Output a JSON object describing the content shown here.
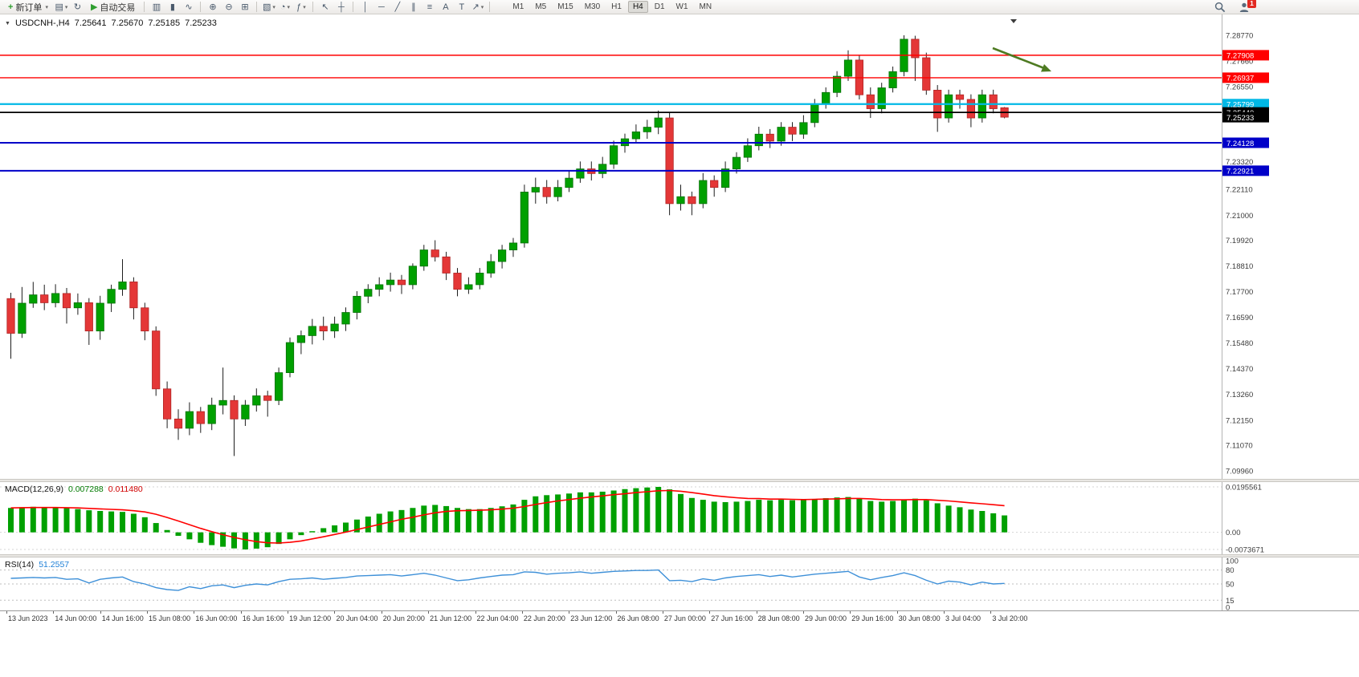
{
  "colors": {
    "bull": "#00a000",
    "bull_border": "#067006",
    "bear": "#e43737",
    "bear_border": "#b02424",
    "macd_hist": "#00a000",
    "macd_signal": "#ff0000",
    "rsi_line": "#3e90d8",
    "level_red": "#ff0000",
    "level_cyan": "#00b8e6",
    "level_blue": "#0000c8",
    "level_black": "#000000",
    "arrow_green": "#4e7b22"
  },
  "toolbar": {
    "items": [
      {
        "t": "btn",
        "name": "new-order-button",
        "icon": "new-order-icon",
        "glyph": "+",
        "gc": "#2e9e2e",
        "label": "新订单",
        "dd": true
      },
      {
        "t": "ico",
        "name": "charts-profile-icon",
        "glyph": "▤",
        "dd": true
      },
      {
        "t": "ico",
        "name": "refresh-icon",
        "glyph": "↻"
      },
      {
        "t": "btn",
        "name": "algo-trading-button",
        "icon": "play-icon",
        "glyph": "▶",
        "gc": "#2e9e2e",
        "label": "自动交易"
      },
      {
        "t": "sep"
      },
      {
        "t": "ico",
        "name": "bar-chart-mode-icon",
        "glyph": "▥"
      },
      {
        "t": "ico",
        "name": "candlestick-chart-mode-icon",
        "glyph": "▮"
      },
      {
        "t": "ico",
        "name": "line-chart-mode-icon",
        "glyph": "∿"
      },
      {
        "t": "sep"
      },
      {
        "t": "ico",
        "name": "zoom-in-icon",
        "glyph": "⊕"
      },
      {
        "t": "ico",
        "name": "zoom-out-icon",
        "glyph": "⊖"
      },
      {
        "t": "ico",
        "name": "tile-windows-icon",
        "glyph": "⊞"
      },
      {
        "t": "sep"
      },
      {
        "t": "ico",
        "name": "new-chart-icon",
        "glyph": "▧",
        "dd": true
      },
      {
        "t": "ico",
        "name": "period-clock-icon",
        "glyph": "◔",
        "dd": true
      },
      {
        "t": "ico",
        "name": "indicators-icon",
        "glyph": "ƒ",
        "dd": true
      },
      {
        "t": "sep"
      },
      {
        "t": "ico",
        "name": "cursor-icon",
        "glyph": "↖"
      },
      {
        "t": "ico",
        "name": "crosshair-icon",
        "glyph": "┼"
      },
      {
        "t": "sep"
      },
      {
        "t": "ico",
        "name": "vertical-line-icon",
        "glyph": "│"
      },
      {
        "t": "ico",
        "name": "horizontal-line-icon",
        "glyph": "─"
      },
      {
        "t": "ico",
        "name": "trendline-icon",
        "glyph": "╱"
      },
      {
        "t": "ico",
        "name": "channel-icon",
        "glyph": "∥"
      },
      {
        "t": "ico",
        "name": "fibonacci-icon",
        "glyph": "≡"
      },
      {
        "t": "ico",
        "name": "text-tool-icon",
        "glyph": "A"
      },
      {
        "t": "ico",
        "name": "label-tool-icon",
        "glyph": "T"
      },
      {
        "t": "ico",
        "name": "arrow-tool-icon",
        "glyph": "↗",
        "dd": true
      },
      {
        "t": "sep"
      }
    ],
    "timeframes": [
      "M1",
      "M5",
      "M15",
      "M30",
      "H1",
      "H4",
      "D1",
      "W1",
      "MN"
    ],
    "active_timeframe": "H4",
    "notification_count": "1"
  },
  "chart": {
    "header": {
      "collapse_glyph": "▼",
      "symbol_period": "USDCNH-,H4",
      "open": "7.25641",
      "high": "7.25670",
      "low": "7.25185",
      "close": "7.25233"
    },
    "price_axis_labels": [
      "7.28770",
      "7.27660",
      "7.26550",
      "7.23320",
      "7.22110",
      "7.21000",
      "7.19920",
      "7.18810",
      "7.17700",
      "7.16590",
      "7.15480",
      "7.14370",
      "7.13260",
      "7.12150",
      "7.11070",
      "7.09960"
    ],
    "levels": [
      {
        "price": 7.27908,
        "label": "7.27908",
        "color": "#ff0000",
        "width": 1.4
      },
      {
        "price": 7.26937,
        "label": "7.26937",
        "color": "#ff0000",
        "width": 1.4
      },
      {
        "price": 7.25799,
        "label": "7.25799",
        "color": "#00b8e6",
        "width": 2.2
      },
      {
        "price": 7.2544,
        "label": "7.25440",
        "color": "#000000",
        "width": 1.8
      },
      {
        "price": 7.24128,
        "label": "7.24128",
        "color": "#0000c8",
        "width": 2
      },
      {
        "price": 7.22921,
        "label": "7.22921",
        "color": "#0000c8",
        "width": 2
      }
    ],
    "current_price": {
      "label": "7.25233",
      "color": "#000000"
    },
    "time_labels": [
      "13 Jun 2023",
      "14 Jun 00:00",
      "14 Jun 16:00",
      "15 Jun 08:00",
      "16 Jun 00:00",
      "16 Jun 16:00",
      "19 Jun 12:00",
      "20 Jun 04:00",
      "20 Jun 20:00",
      "21 Jun 12:00",
      "22 Jun 04:00",
      "22 Jun 20:00",
      "23 Jun 12:00",
      "26 Jun 08:00",
      "27 Jun 00:00",
      "27 Jun 16:00",
      "28 Jun 08:00",
      "29 Jun 00:00",
      "29 Jun 16:00",
      "30 Jun 08:00",
      "3 Jul 04:00",
      "3 Jul 20:00"
    ],
    "candles": [
      [
        7.174,
        7.1765,
        7.148,
        7.159
      ],
      [
        7.159,
        7.179,
        7.157,
        7.172
      ],
      [
        7.172,
        7.1812,
        7.17,
        7.1756
      ],
      [
        7.1756,
        7.18,
        7.169,
        7.1722
      ],
      [
        7.1722,
        7.1802,
        7.1702,
        7.1762
      ],
      [
        7.1762,
        7.1786,
        7.1632,
        7.17
      ],
      [
        7.17,
        7.1762,
        7.167,
        7.1722
      ],
      [
        7.1722,
        7.1742,
        7.154,
        7.16
      ],
      [
        7.16,
        7.1752,
        7.1562,
        7.172
      ],
      [
        7.172,
        7.18,
        7.1682,
        7.178
      ],
      [
        7.178,
        7.191,
        7.1752,
        7.1812
      ],
      [
        7.1812,
        7.1832,
        7.165,
        7.17
      ],
      [
        7.17,
        7.1722,
        7.156,
        7.16
      ],
      [
        7.16,
        7.162,
        7.132,
        7.135
      ],
      [
        7.135,
        7.1382,
        7.118,
        7.122
      ],
      [
        7.122,
        7.1262,
        7.113,
        7.118
      ],
      [
        7.118,
        7.1292,
        7.115,
        7.1252
      ],
      [
        7.1252,
        7.1272,
        7.116,
        7.12
      ],
      [
        7.12,
        7.1312,
        7.1172,
        7.128
      ],
      [
        7.128,
        7.1442,
        7.124,
        7.13
      ],
      [
        7.13,
        7.1322,
        7.106,
        7.122
      ],
      [
        7.122,
        7.1302,
        7.119,
        7.128
      ],
      [
        7.128,
        7.1352,
        7.1252,
        7.132
      ],
      [
        7.132,
        7.1342,
        7.123,
        7.13
      ],
      [
        7.13,
        7.1442,
        7.128,
        7.142
      ],
      [
        7.142,
        7.1572,
        7.14,
        7.155
      ],
      [
        7.155,
        7.1602,
        7.15,
        7.158
      ],
      [
        7.158,
        7.1652,
        7.1542,
        7.162
      ],
      [
        7.162,
        7.1662,
        7.156,
        7.16
      ],
      [
        7.16,
        7.1662,
        7.157,
        7.163
      ],
      [
        7.163,
        7.1702,
        7.16,
        7.168
      ],
      [
        7.168,
        7.1772,
        7.165,
        7.175
      ],
      [
        7.175,
        7.1802,
        7.172,
        7.178
      ],
      [
        7.178,
        7.1832,
        7.175,
        7.18
      ],
      [
        7.18,
        7.1852,
        7.177,
        7.182
      ],
      [
        7.182,
        7.1842,
        7.176,
        7.18
      ],
      [
        7.18,
        7.1892,
        7.178,
        7.188
      ],
      [
        7.188,
        7.1972,
        7.186,
        7.195
      ],
      [
        7.195,
        7.1992,
        7.19,
        7.192
      ],
      [
        7.192,
        7.1942,
        7.182,
        7.185
      ],
      [
        7.185,
        7.1872,
        7.175,
        7.178
      ],
      [
        7.178,
        7.1832,
        7.176,
        7.18
      ],
      [
        7.18,
        7.1872,
        7.178,
        7.185
      ],
      [
        7.185,
        7.1932,
        7.183,
        7.19
      ],
      [
        7.19,
        7.1972,
        7.187,
        7.195
      ],
      [
        7.195,
        7.2002,
        7.192,
        7.198
      ],
      [
        7.198,
        7.2232,
        7.196,
        7.22
      ],
      [
        7.22,
        7.2262,
        7.215,
        7.222
      ],
      [
        7.222,
        7.2252,
        7.215,
        7.218
      ],
      [
        7.218,
        7.2252,
        7.216,
        7.222
      ],
      [
        7.222,
        7.2292,
        7.22,
        7.226
      ],
      [
        7.226,
        7.2332,
        7.224,
        7.23
      ],
      [
        7.23,
        7.2332,
        7.225,
        7.228
      ],
      [
        7.228,
        7.2352,
        7.226,
        7.232
      ],
      [
        7.232,
        7.2422,
        7.23,
        7.24
      ],
      [
        7.24,
        7.2452,
        7.237,
        7.243
      ],
      [
        7.243,
        7.2492,
        7.241,
        7.246
      ],
      [
        7.246,
        7.2512,
        7.243,
        7.248
      ],
      [
        7.248,
        7.2552,
        7.245,
        7.252
      ],
      [
        7.252,
        7.2542,
        7.21,
        7.215
      ],
      [
        7.215,
        7.2232,
        7.212,
        7.218
      ],
      [
        7.218,
        7.2202,
        7.21,
        7.215
      ],
      [
        7.215,
        7.2282,
        7.213,
        7.225
      ],
      [
        7.225,
        7.2272,
        7.218,
        7.222
      ],
      [
        7.222,
        7.2332,
        7.22,
        7.23
      ],
      [
        7.23,
        7.2372,
        7.228,
        7.235
      ],
      [
        7.235,
        7.2432,
        7.233,
        7.24
      ],
      [
        7.24,
        7.2482,
        7.238,
        7.245
      ],
      [
        7.245,
        7.2472,
        7.239,
        7.242
      ],
      [
        7.242,
        7.2502,
        7.24,
        7.248
      ],
      [
        7.248,
        7.2502,
        7.242,
        7.245
      ],
      [
        7.245,
        7.2532,
        7.243,
        7.25
      ],
      [
        7.25,
        7.2602,
        7.248,
        7.258
      ],
      [
        7.258,
        7.2652,
        7.256,
        7.263
      ],
      [
        7.263,
        7.2722,
        7.261,
        7.27
      ],
      [
        7.27,
        7.2812,
        7.268,
        7.277
      ],
      [
        7.277,
        7.2792,
        7.26,
        7.262
      ],
      [
        7.262,
        7.2652,
        7.252,
        7.256
      ],
      [
        7.256,
        7.2672,
        7.254,
        7.265
      ],
      [
        7.265,
        7.2742,
        7.263,
        7.272
      ],
      [
        7.272,
        7.2877,
        7.27,
        7.286
      ],
      [
        7.286,
        7.2875,
        7.268,
        7.278
      ],
      [
        7.278,
        7.2802,
        7.262,
        7.264
      ],
      [
        7.264,
        7.2662,
        7.246,
        7.252
      ],
      [
        7.252,
        7.2642,
        7.25,
        7.262
      ],
      [
        7.262,
        7.2642,
        7.256,
        7.26
      ],
      [
        7.26,
        7.2622,
        7.248,
        7.252
      ],
      [
        7.252,
        7.2642,
        7.25,
        7.262
      ],
      [
        7.262,
        7.2642,
        7.254,
        7.256
      ],
      [
        7.25641,
        7.2567,
        7.25185,
        7.25233
      ]
    ]
  },
  "macd": {
    "header": "MACD(12,26,9)",
    "main_value": "0.007288",
    "signal_value": "0.011480",
    "scale_labels": [
      "0.0195561",
      "0.00",
      "-0.0073671"
    ],
    "scale_max": 0.0195561,
    "scale_min": -0.0073671,
    "histogram": [
      0.0105,
      0.0108,
      0.011,
      0.0109,
      0.0107,
      0.0104,
      0.01,
      0.0095,
      0.0092,
      0.009,
      0.0088,
      0.008,
      0.0065,
      0.004,
      0.001,
      -0.0015,
      -0.003,
      -0.0045,
      -0.0055,
      -0.0062,
      -0.0069,
      -0.0073671,
      -0.007,
      -0.0064,
      -0.005,
      -0.003,
      -0.0012,
      0.0005,
      0.0018,
      0.003,
      0.0042,
      0.0055,
      0.0068,
      0.008,
      0.009,
      0.0096,
      0.0105,
      0.0115,
      0.0118,
      0.0113,
      0.0105,
      0.01,
      0.01,
      0.0105,
      0.0112,
      0.012,
      0.014,
      0.0155,
      0.016,
      0.0163,
      0.0167,
      0.0172,
      0.0172,
      0.0175,
      0.018,
      0.0186,
      0.019,
      0.0193,
      0.0195561,
      0.0185,
      0.0165,
      0.0148,
      0.014,
      0.0132,
      0.013,
      0.0132,
      0.0135,
      0.014,
      0.0138,
      0.014,
      0.0138,
      0.014,
      0.0143,
      0.0147,
      0.015,
      0.0152,
      0.0145,
      0.0135,
      0.0132,
      0.0135,
      0.0142,
      0.0145,
      0.0138,
      0.0125,
      0.0115,
      0.0108,
      0.0098,
      0.0092,
      0.0082,
      0.007288
    ],
    "signal": [
      0.0105,
      0.0106,
      0.0107,
      0.0107,
      0.0107,
      0.0106,
      0.0105,
      0.0103,
      0.0101,
      0.0099,
      0.0097,
      0.0093,
      0.0088,
      0.0078,
      0.0064,
      0.0049,
      0.0033,
      0.0017,
      0.0003,
      -0.001,
      -0.0022,
      -0.0032,
      -0.004,
      -0.0045,
      -0.0046,
      -0.0043,
      -0.0037,
      -0.0028,
      -0.0019,
      -0.0009,
      0.0001,
      0.0012,
      0.0023,
      0.0034,
      0.0045,
      0.0056,
      0.0065,
      0.0075,
      0.0084,
      0.009,
      0.0093,
      0.0094,
      0.0095,
      0.0097,
      0.01,
      0.0104,
      0.0111,
      0.012,
      0.0128,
      0.0135,
      0.0141,
      0.0147,
      0.0152,
      0.0157,
      0.0162,
      0.0166,
      0.0171,
      0.0175,
      0.0179,
      0.018,
      0.0177,
      0.0171,
      0.0165,
      0.0158,
      0.0153,
      0.0149,
      0.0146,
      0.0145,
      0.0143,
      0.0143,
      0.0142,
      0.0141,
      0.0142,
      0.0143,
      0.0144,
      0.0146,
      0.0146,
      0.0144,
      0.0141,
      0.014,
      0.014,
      0.0141,
      0.0141,
      0.0138,
      0.0135,
      0.0131,
      0.0127,
      0.0123,
      0.0119,
      0.01148
    ]
  },
  "rsi": {
    "header": "RSI(14)",
    "value": "51.2557",
    "scale_labels": [
      "100",
      "80",
      "50",
      "15",
      "0"
    ],
    "levels": [
      80,
      50,
      15
    ],
    "values": [
      62,
      63,
      64,
      63,
      64,
      60,
      61,
      52,
      60,
      63,
      65,
      55,
      50,
      42,
      38,
      36,
      44,
      40,
      46,
      48,
      42,
      47,
      50,
      48,
      55,
      60,
      61,
      63,
      60,
      62,
      64,
      67,
      68,
      69,
      70,
      67,
      70,
      73,
      69,
      63,
      57,
      59,
      63,
      66,
      69,
      70,
      76,
      75,
      71,
      73,
      74,
      76,
      73,
      75,
      77,
      78,
      79,
      79,
      80,
      57,
      58,
      55,
      61,
      58,
      63,
      66,
      68,
      70,
      66,
      69,
      65,
      68,
      71,
      73,
      75,
      77,
      65,
      59,
      64,
      68,
      74,
      68,
      58,
      50,
      56,
      54,
      48,
      54,
      50,
      51.2557
    ]
  }
}
